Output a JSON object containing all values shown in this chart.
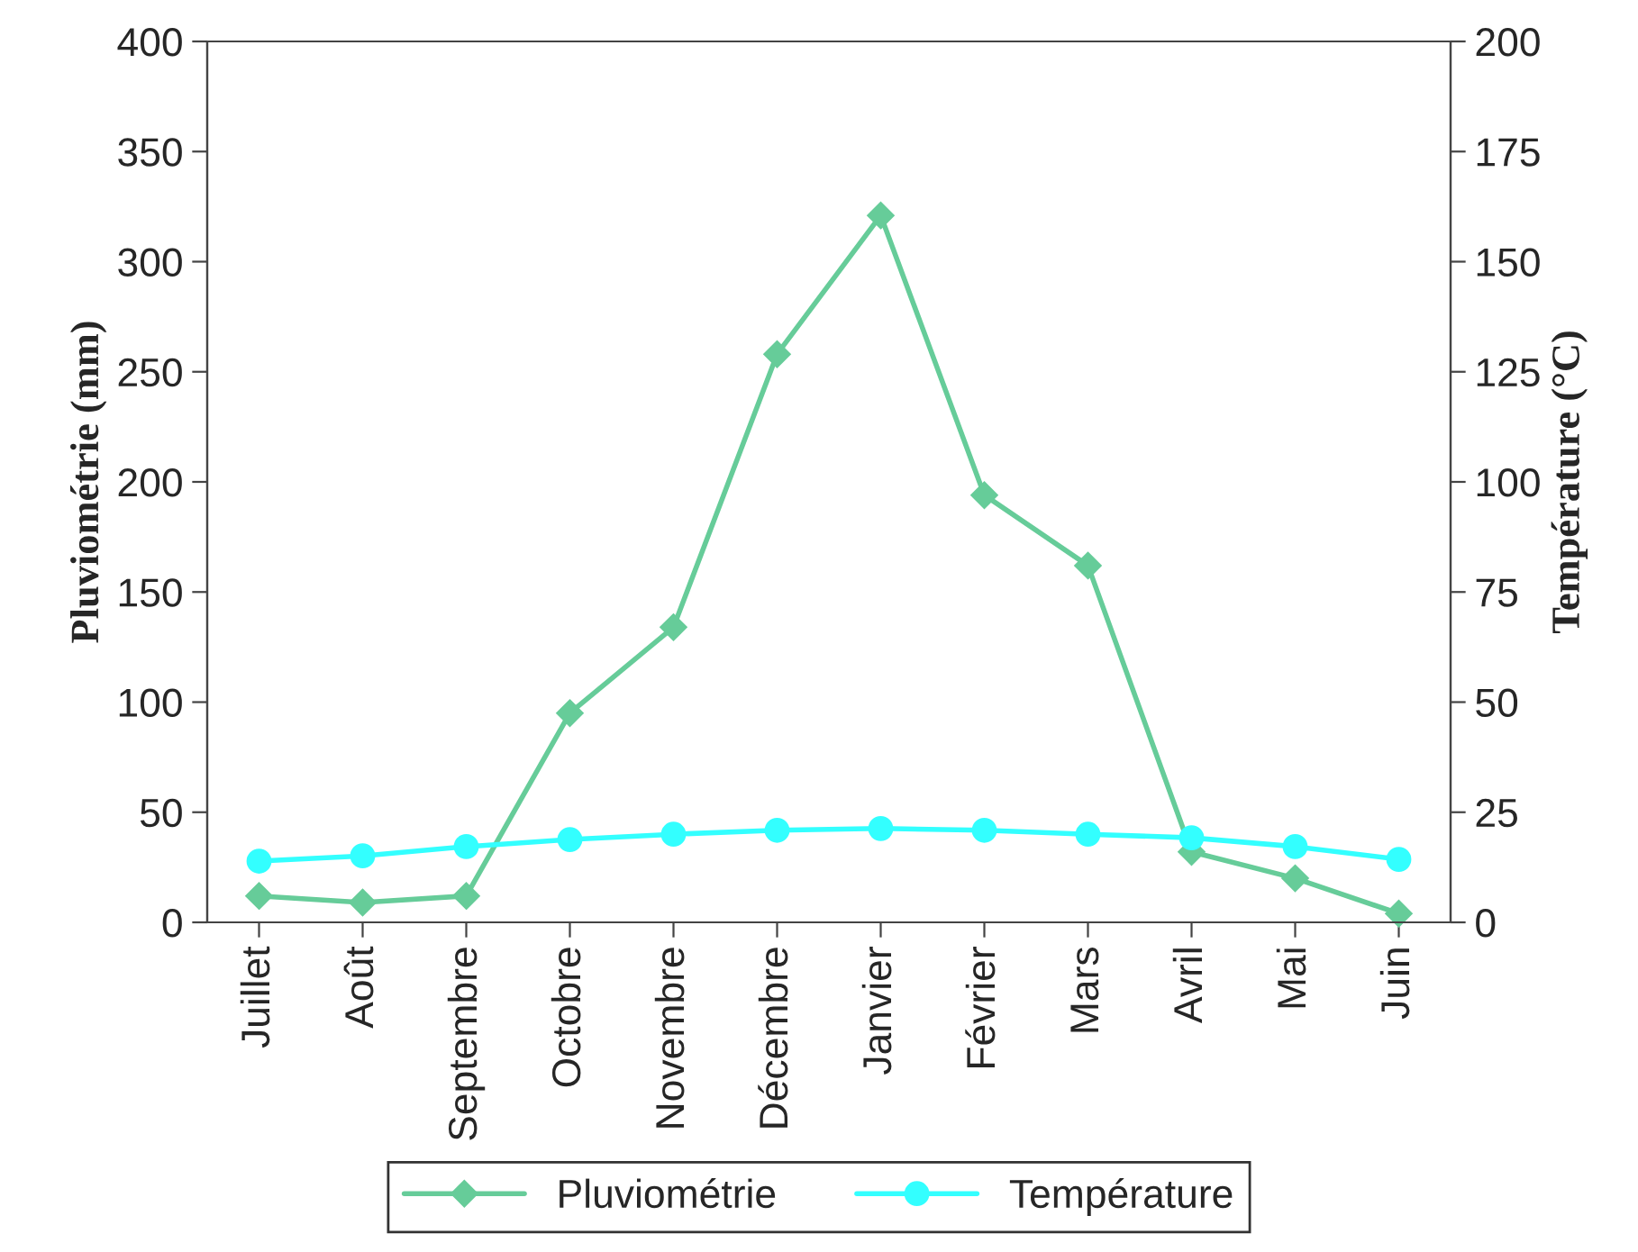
{
  "chart_data": {
    "type": "line",
    "ylabel": "Pluviométrie (mm)",
    "y2label": "Température (°C)",
    "categories": [
      "Juillet",
      "Août",
      "Septembre",
      "Octobre",
      "Novembre",
      "Décembre",
      "Janvier",
      "Février",
      "Mars",
      "Avril",
      "Mai",
      "Juin"
    ],
    "series": [
      {
        "name": "Pluviométrie",
        "color": "#66cc99",
        "marker": "diamond",
        "values": [
          12,
          9,
          12,
          95,
          134,
          258,
          321,
          194,
          162,
          32,
          20,
          4
        ]
      },
      {
        "name": "Température",
        "color": "#33ffff",
        "marker": "circle",
        "axis": "y2",
        "values": [
          13.9,
          15.1,
          17.2,
          18.8,
          20,
          20.9,
          21.3,
          20.9,
          20,
          19.2,
          17.2,
          14.3
        ]
      }
    ],
    "ylim": [
      0,
      400
    ],
    "yticks": [
      0,
      50,
      100,
      150,
      200,
      250,
      300,
      350,
      400
    ],
    "y2lim": [
      0,
      200
    ],
    "y2ticks": [
      0,
      25,
      50,
      75,
      100,
      125,
      150,
      175,
      200
    ],
    "grid": false,
    "legend": "bottom"
  }
}
